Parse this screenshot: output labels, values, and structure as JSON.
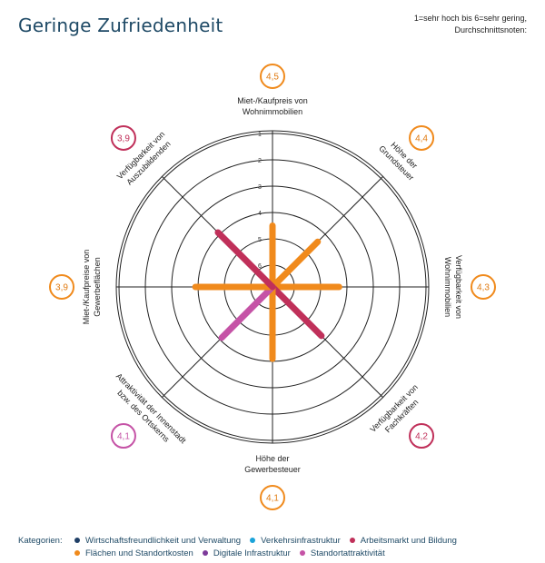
{
  "header": {
    "title": "Geringe Zufriedenheit",
    "note_line1": "1=sehr hoch bis 6=sehr gering,",
    "note_line2": "Durchschnittsnoten:"
  },
  "chart_data": {
    "type": "radar",
    "title": "Geringe Zufriedenheit",
    "scale": {
      "min": 1,
      "max": 6,
      "ticks": [
        "1",
        "2",
        "3",
        "4",
        "5",
        "6"
      ],
      "note": "1=sehr hoch bis 6=sehr gering"
    },
    "axes": [
      {
        "label_lines": [
          "Miet-/Kaufpreis von",
          "Wohnimmobilien"
        ],
        "value": 4.5,
        "value_label": "4,5",
        "category": "Flächen und Standortkosten",
        "color": "#f08a1c",
        "badge_color": "#f08a1c"
      },
      {
        "label_lines": [
          "Höhe der",
          "Grundsteuer"
        ],
        "value": 4.4,
        "value_label": "4,4",
        "category": "Flächen und Standortkosten",
        "color": "#f08a1c",
        "badge_color": "#f08a1c"
      },
      {
        "label_lines": [
          "Verfügbarkeit von",
          "Wohnimmobilien"
        ],
        "value": 4.3,
        "value_label": "4,3",
        "category": "Flächen und Standortkosten",
        "color": "#f08a1c",
        "badge_color": "#f08a1c"
      },
      {
        "label_lines": [
          "Verfügbarkeit von",
          "Fachkräften"
        ],
        "value": 4.2,
        "value_label": "4,2",
        "category": "Arbeitsmarkt und Bildung",
        "color": "#c0305a",
        "badge_color": "#c0305a"
      },
      {
        "label_lines": [
          "Höhe der",
          "Gewerbesteuer"
        ],
        "value": 4.1,
        "value_label": "4,1",
        "category": "Flächen und Standortkosten",
        "color": "#f08a1c",
        "badge_color": "#f08a1c"
      },
      {
        "label_lines": [
          "Attraktivität der Innenstadt",
          "bzw. des Ortskerns"
        ],
        "value": 4.1,
        "value_label": "4,1",
        "category": "Standortattraktivität",
        "color": "#c553a6",
        "badge_color": "#c553a6"
      },
      {
        "label_lines": [
          "Miet-/Kaufpreise von",
          "Gewerbeflächen"
        ],
        "value": 3.9,
        "value_label": "3,9",
        "category": "Flächen und Standortkosten",
        "color": "#f08a1c",
        "badge_color": "#f08a1c"
      },
      {
        "label_lines": [
          "Verfügbarkeit von",
          "Auszubildenden"
        ],
        "value": 3.9,
        "value_label": "3,9",
        "category": "Arbeitsmarkt und Bildung",
        "color": "#c0305a",
        "badge_color": "#c0305a"
      }
    ],
    "grid": true,
    "legend_position": "bottom"
  },
  "legend": {
    "heading": "Kategorien:",
    "row1": [
      {
        "label": "Wirtschaftsfreundlichkeit und Verwaltung",
        "color": "#1f3f66"
      },
      {
        "label": "Verkehrsinfrastruktur",
        "color": "#1aa3d9"
      },
      {
        "label": "Arbeitsmarkt und Bildung",
        "color": "#c0305a"
      }
    ],
    "row2": [
      {
        "label": "Flächen und Standortkosten",
        "color": "#f08a1c"
      },
      {
        "label": "Digitale Infrastruktur",
        "color": "#7d3a9a"
      },
      {
        "label": "Standortattraktivität",
        "color": "#c553a6"
      }
    ]
  }
}
